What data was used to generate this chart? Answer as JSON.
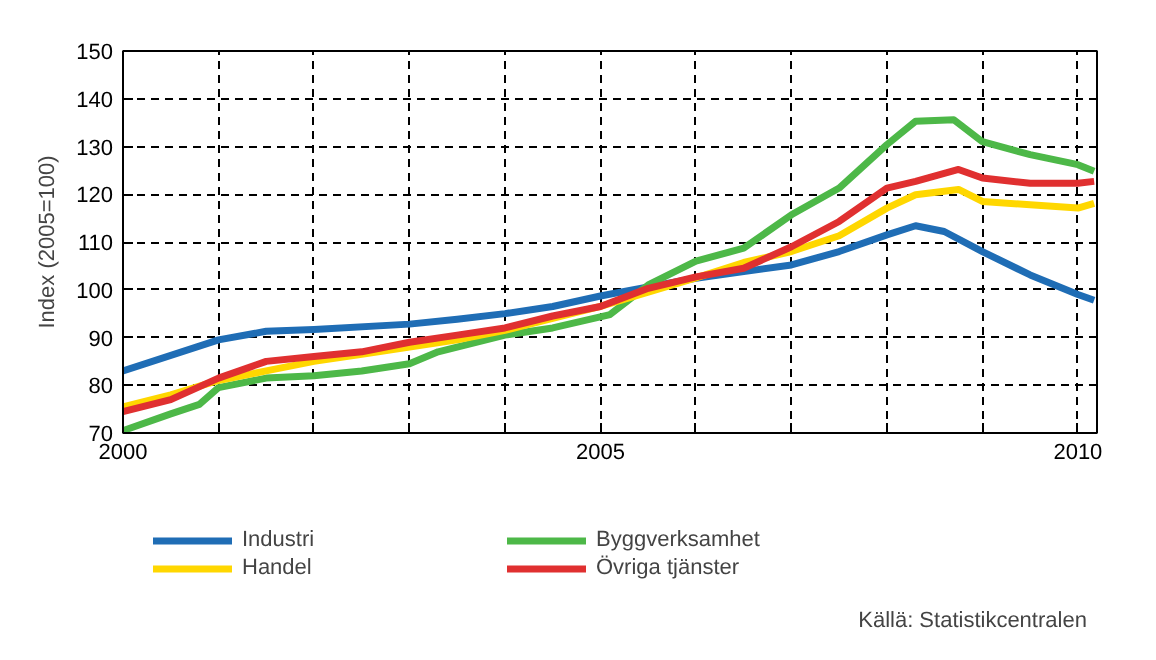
{
  "chart_data": {
    "type": "line",
    "ylabel": "Index (2005=100)",
    "xlim": [
      2000,
      2010.2
    ],
    "ylim": [
      70,
      150
    ],
    "xticks": [
      2000,
      {
        "value": 2001,
        "label": null
      },
      {
        "value": 2002,
        "label": null
      },
      {
        "value": 2003,
        "label": null
      },
      {
        "value": 2004,
        "label": null
      },
      2005,
      {
        "value": 2006,
        "label": null
      },
      {
        "value": 2007,
        "label": null
      },
      {
        "value": 2008,
        "label": null
      },
      {
        "value": 2009,
        "label": null
      },
      2010
    ],
    "yticks": [
      70,
      80,
      90,
      100,
      110,
      120,
      130,
      140,
      150
    ],
    "grid": true,
    "legend": "bottom",
    "line_style": "solid",
    "annotations": [
      "Källä: Statistikcentralen"
    ],
    "series": [
      {
        "name": "Industri",
        "color": "#1f6db5",
        "x": [
          2000,
          2001,
          2001.5,
          2002,
          2003,
          2003.5,
          2004,
          2004.5,
          2005,
          2005.5,
          2006,
          2006.5,
          2007,
          2007.5,
          2008,
          2008.3,
          2008.6,
          2009,
          2009.5,
          2010,
          2010.17
        ],
        "values": [
          83,
          89.5,
          91.3,
          91.7,
          92.8,
          93.8,
          95,
          96.5,
          98.7,
          100.6,
          102.4,
          103.8,
          105.2,
          108,
          111.5,
          113.4,
          112.2,
          108,
          103.1,
          99,
          97.8
        ]
      },
      {
        "name": "Byggverksamhet",
        "color": "#4db848",
        "x": [
          2000,
          2000.5,
          2000.8,
          2001,
          2001.5,
          2002,
          2002.5,
          2003,
          2003.3,
          2004,
          2004.5,
          2005.1,
          2005.5,
          2006,
          2006.5,
          2007,
          2007.5,
          2008,
          2008.3,
          2008.7,
          2009,
          2009.5,
          2010,
          2010.17
        ],
        "values": [
          70.5,
          74,
          76,
          79.5,
          81.5,
          82,
          83,
          84.5,
          87,
          90.5,
          92,
          94.8,
          101,
          106,
          108.7,
          115.7,
          121.3,
          130.4,
          135.3,
          135.6,
          131,
          128.3,
          126.2,
          124.8
        ]
      },
      {
        "name": "Handel",
        "color": "#ffd700",
        "x": [
          2000,
          2000.5,
          2001,
          2001.5,
          2002,
          2002.5,
          2003,
          2003.5,
          2004,
          2004.5,
          2005,
          2005.5,
          2006,
          2006.5,
          2007,
          2007.5,
          2008,
          2008.3,
          2008.75,
          2009,
          2009.5,
          2010,
          2010.17
        ],
        "values": [
          75.5,
          78,
          81,
          83,
          85,
          86.5,
          88,
          89.5,
          91.5,
          94,
          96.5,
          99.5,
          102.5,
          105.7,
          108,
          111.3,
          117.1,
          119.9,
          121,
          118.5,
          117.8,
          117.1,
          118.1
        ]
      },
      {
        "name": "Övriga tjänster",
        "color": "#e03030",
        "x": [
          2000,
          2000.5,
          2001,
          2001.5,
          2002,
          2002.5,
          2003,
          2003.5,
          2004,
          2004.5,
          2005,
          2005.5,
          2006,
          2006.5,
          2007,
          2007.5,
          2008,
          2008.3,
          2008.75,
          2009,
          2009.5,
          2010,
          2010.17
        ],
        "values": [
          74.5,
          77,
          81.5,
          85,
          86,
          87,
          89,
          90.5,
          92,
          94.5,
          96.5,
          100.3,
          102.7,
          104.5,
          109,
          114.3,
          121.3,
          122.7,
          125.2,
          123.4,
          122.3,
          122.3,
          122.7
        ]
      }
    ]
  }
}
